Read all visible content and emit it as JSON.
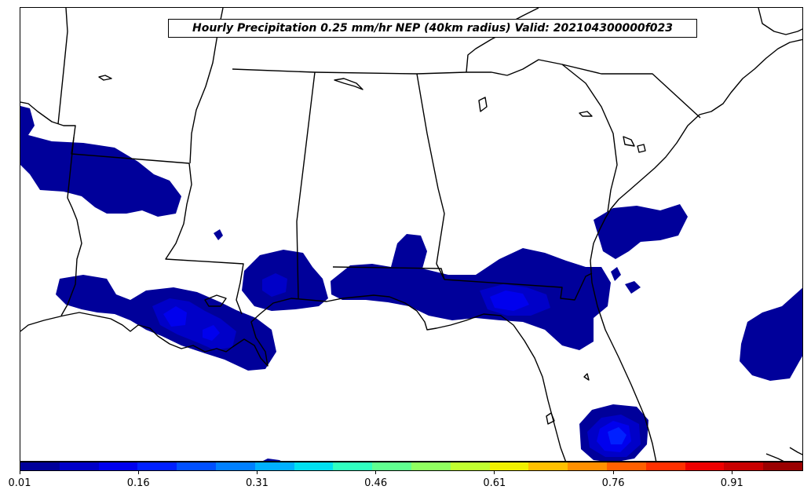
{
  "title": "Hourly Precipitation 0.25 mm/hr NEP (40km radius) Valid: 202104300000f023",
  "colorbar": {
    "colors": [
      "#00009a",
      "#0000c8",
      "#0000ee",
      "#0020ff",
      "#0050ff",
      "#0080ff",
      "#00b0ff",
      "#00e0f0",
      "#30ffc0",
      "#60ff90",
      "#90ff60",
      "#c0ff30",
      "#f0f000",
      "#ffc000",
      "#ff9000",
      "#ff6000",
      "#ff3000",
      "#ee0000",
      "#c80000",
      "#9a0000"
    ],
    "tick_labels": [
      "0.01",
      "0.16",
      "0.31",
      "0.46",
      "0.61",
      "0.76",
      "0.91"
    ],
    "tick_values": [
      0.01,
      0.16,
      0.31,
      0.46,
      0.61,
      0.76,
      0.91
    ],
    "range": [
      0.01,
      1.0
    ]
  },
  "colors": {
    "level1": "#00009a",
    "level2": "#0000c8",
    "level3": "#0000ee",
    "level4": "#0020ff"
  }
}
